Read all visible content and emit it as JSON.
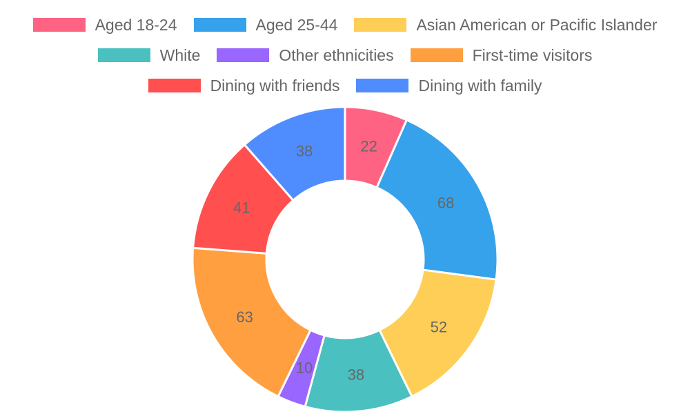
{
  "chart_data": {
    "type": "doughnut",
    "legend_position": "top",
    "categories": [
      "Aged 18-24",
      "Aged 25-44",
      "Asian American or Pacific Islander",
      "White",
      "Other ethnicities",
      "First-time visitors",
      "Dining with friends",
      "Dining with family"
    ],
    "values": [
      22,
      68,
      52,
      38,
      10,
      63,
      41,
      38
    ],
    "colors": [
      "#FF6384",
      "#36A2EB",
      "#FFCE56",
      "#4BC0C0",
      "#9966FF",
      "#FF9F40",
      "#FF4F4F",
      "#4F8DFF"
    ]
  }
}
